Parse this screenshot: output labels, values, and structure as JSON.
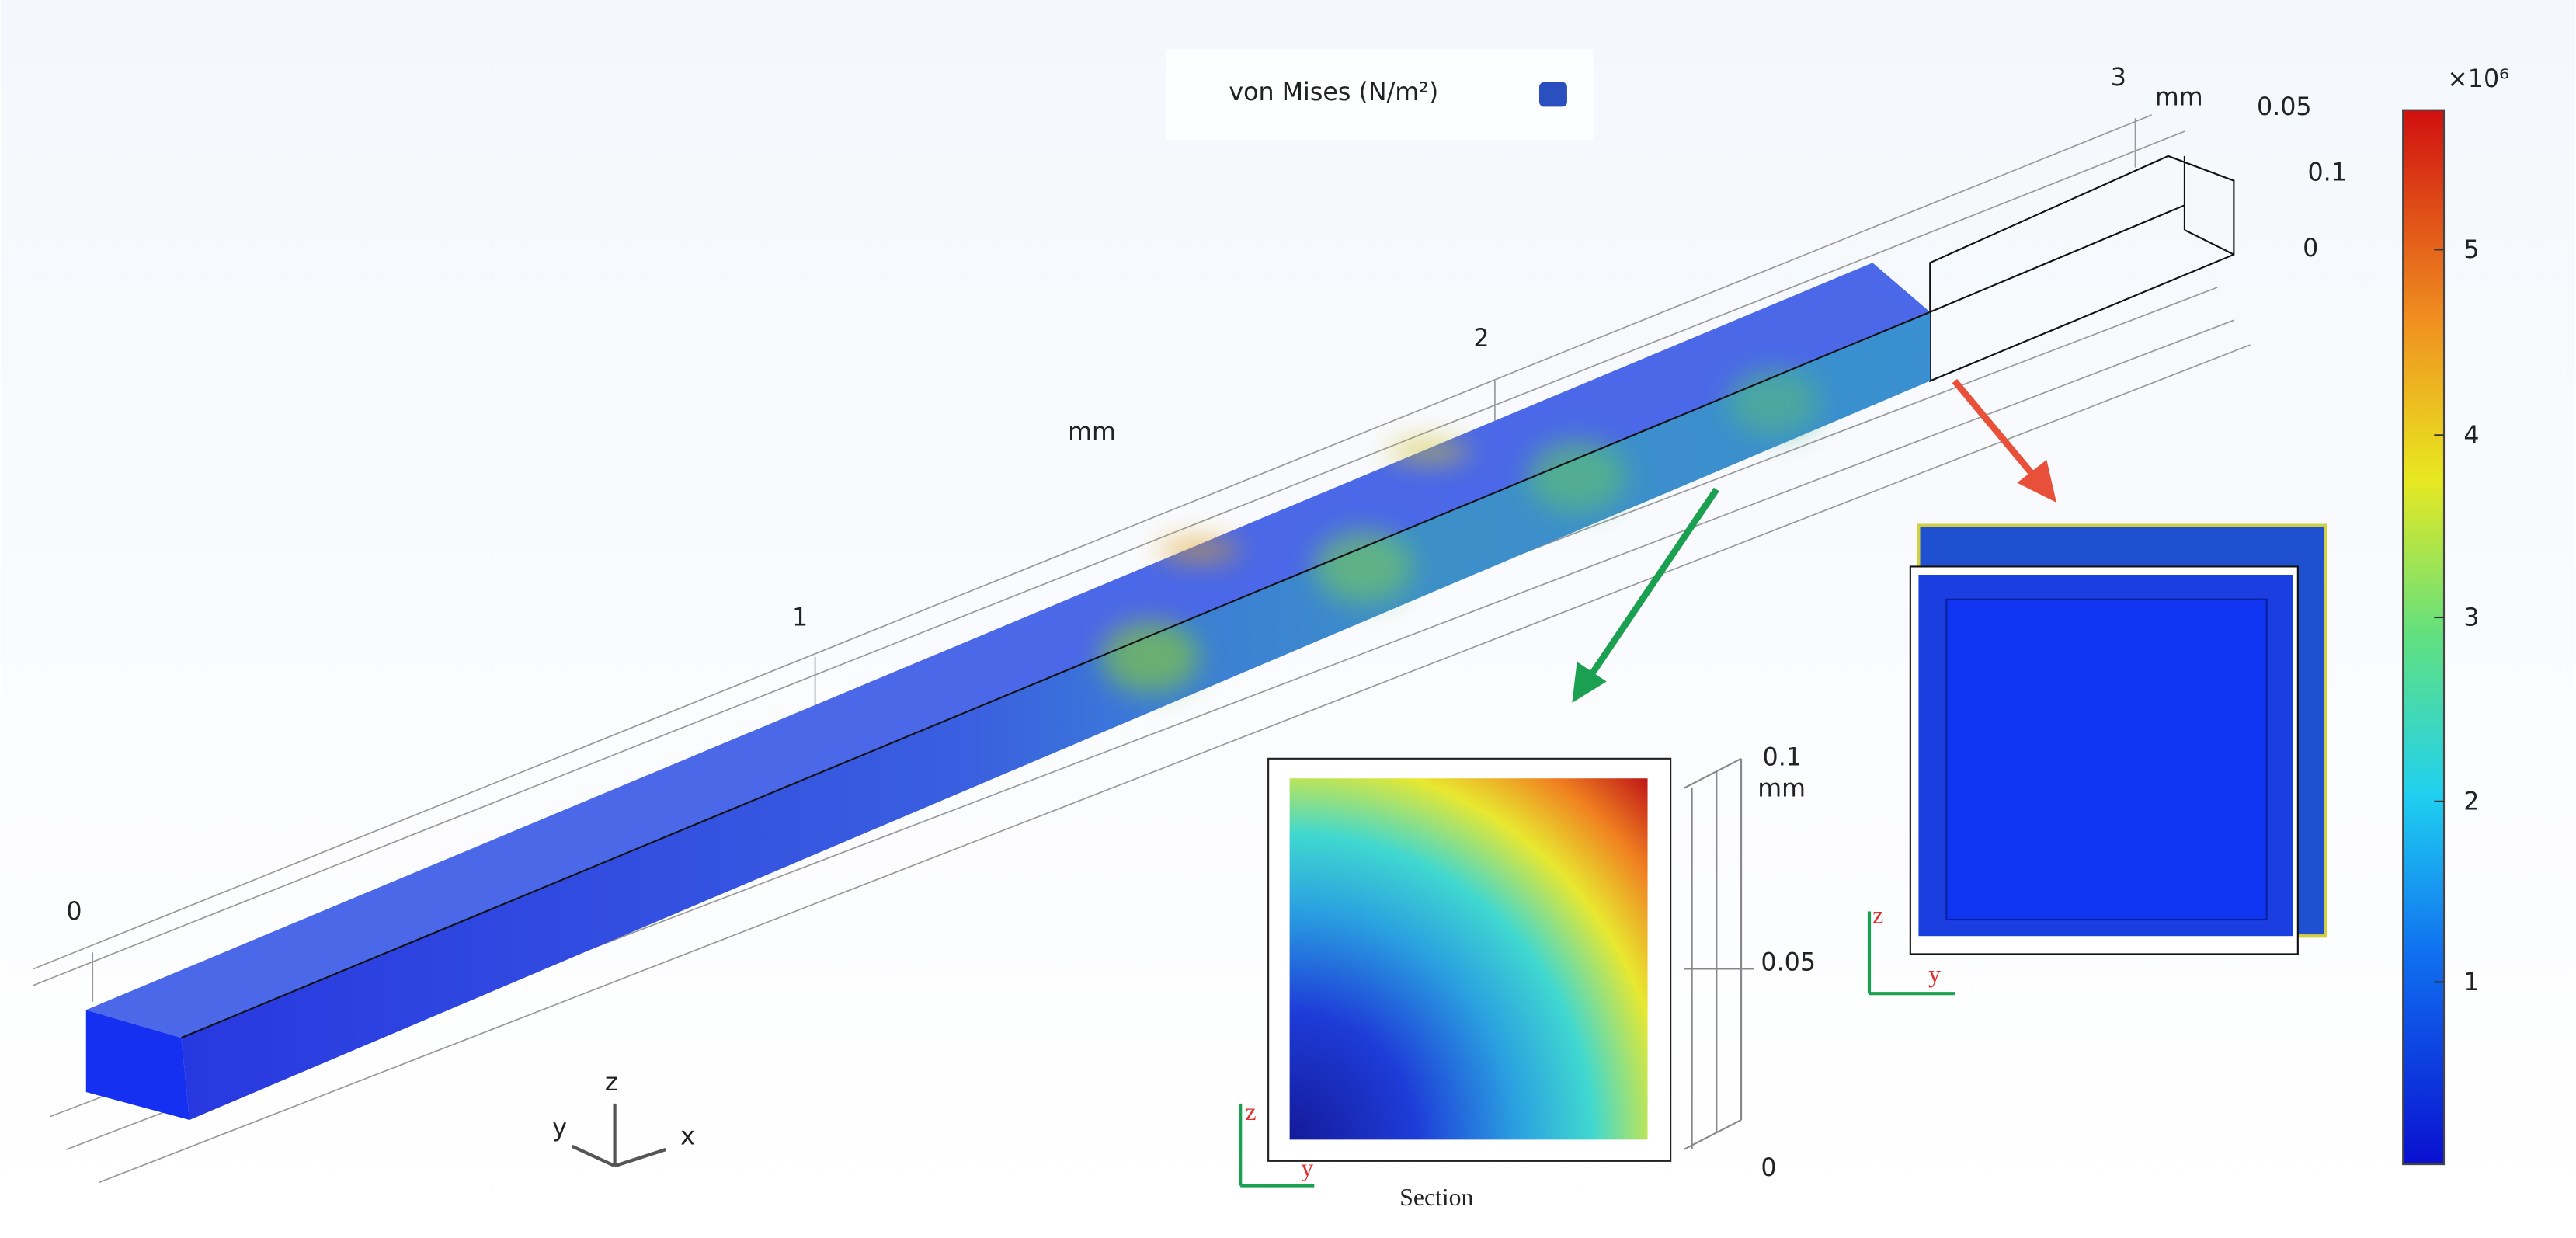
{
  "legend": {
    "title": "von Mises  (N/m²)"
  },
  "beam_axis": {
    "ticks": [
      "0",
      "1",
      "2",
      "3"
    ],
    "unit": "mm",
    "unit_end": "mm",
    "side_ticks": [
      "0.05",
      "0.1",
      "0"
    ]
  },
  "colorbar": {
    "multiplier": "×10⁶",
    "ticks": [
      "5",
      "4",
      "3",
      "2",
      "1"
    ]
  },
  "section_inset": {
    "caption": "Section",
    "ticks": [
      "0.1",
      "mm",
      "0.05",
      "0"
    ],
    "axes": [
      "z",
      "y"
    ]
  },
  "end_inset": {
    "axes": [
      "z",
      "y"
    ]
  },
  "triad": {
    "axes": [
      "z",
      "y",
      "x"
    ]
  }
}
